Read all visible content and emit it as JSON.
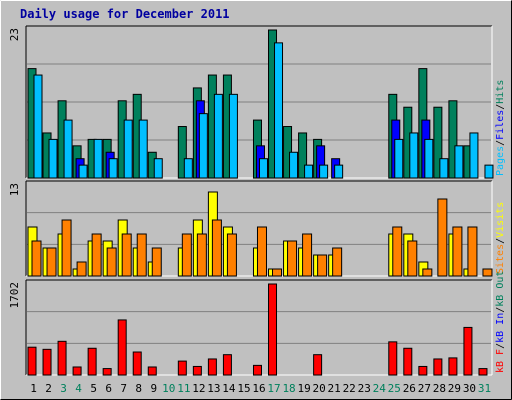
{
  "chart_data": [
    {
      "type": "bar",
      "title": "Daily usage for December 2011",
      "panel": "pages-files-hits",
      "scale_label": "23",
      "ylim": [
        0,
        23
      ],
      "categories": [
        "1",
        "2",
        "3",
        "4",
        "5",
        "6",
        "7",
        "8",
        "9",
        "10",
        "11",
        "12",
        "13",
        "14",
        "15",
        "16",
        "17",
        "18",
        "19",
        "20",
        "21",
        "22",
        "23",
        "24",
        "25",
        "26",
        "27",
        "28",
        "29",
        "30",
        "31"
      ],
      "weekend_days": [
        "3",
        "4",
        "10",
        "11",
        "17",
        "18",
        "24",
        "25",
        "31"
      ],
      "series": [
        {
          "name": "Hits",
          "color": "#00805c",
          "values": [
            17,
            7,
            12,
            5,
            6,
            6,
            12,
            13,
            4,
            0,
            8,
            14,
            16,
            16,
            0,
            9,
            23,
            8,
            7,
            6,
            0,
            0,
            0,
            0,
            13,
            11,
            17,
            11,
            12,
            5,
            0
          ]
        },
        {
          "name": "Files",
          "color": "#0000ff",
          "values": [
            0,
            0,
            0,
            3,
            0,
            4,
            0,
            0,
            0,
            0,
            0,
            12,
            0,
            0,
            0,
            5,
            0,
            0,
            0,
            5,
            3,
            0,
            0,
            0,
            9,
            0,
            9,
            0,
            0,
            0,
            0
          ]
        },
        {
          "name": "Pages",
          "color": "#00bfff",
          "values": [
            16,
            6,
            9,
            2,
            6,
            3,
            9,
            9,
            3,
            0,
            3,
            10,
            13,
            13,
            0,
            3,
            21,
            4,
            2,
            2,
            2,
            0,
            0,
            0,
            6,
            7,
            6,
            3,
            5,
            7,
            2
          ]
        }
      ],
      "axis_labels": [
        {
          "text": "Pages",
          "color": "#00bfff"
        },
        {
          "text": "/",
          "color": "#000000"
        },
        {
          "text": "Files",
          "color": "#0000ff"
        },
        {
          "text": "/",
          "color": "#000000"
        },
        {
          "text": "Hits",
          "color": "#00805c"
        }
      ]
    },
    {
      "type": "bar",
      "panel": "visits-sites",
      "scale_label": "13",
      "ylim": [
        0,
        13
      ],
      "series": [
        {
          "name": "Visits",
          "color": "#ffff00",
          "values": [
            7,
            4,
            6,
            1,
            5,
            5,
            8,
            4,
            2,
            0,
            4,
            8,
            12,
            7,
            0,
            4,
            1,
            5,
            4,
            3,
            3,
            0,
            0,
            0,
            6,
            6,
            2,
            0,
            6,
            1,
            0
          ]
        },
        {
          "name": "Sites",
          "color": "#ff8000",
          "values": [
            5,
            4,
            8,
            2,
            6,
            4,
            6,
            6,
            4,
            0,
            6,
            6,
            8,
            6,
            0,
            7,
            1,
            5,
            6,
            3,
            4,
            0,
            0,
            0,
            7,
            5,
            1,
            11,
            7,
            7,
            1
          ]
        }
      ],
      "axis_labels": [
        {
          "text": "Sites",
          "color": "#ff8000"
        },
        {
          "text": "/",
          "color": "#000000"
        },
        {
          "text": "Visits",
          "color": "#ffff00"
        }
      ]
    },
    {
      "type": "bar",
      "panel": "kbytes",
      "scale_label": "1702",
      "ylim": [
        0,
        1702
      ],
      "series": [
        {
          "name": "kB F",
          "color": "#ff0000",
          "values": [
            520,
            480,
            630,
            150,
            500,
            120,
            1030,
            430,
            150,
            0,
            260,
            160,
            300,
            380,
            0,
            180,
            1702,
            0,
            0,
            380,
            0,
            0,
            0,
            0,
            620,
            500,
            160,
            300,
            320,
            890,
            120
          ]
        }
      ],
      "axis_labels": [
        {
          "text": "kB F",
          "color": "#ff0000"
        },
        {
          "text": "/",
          "color": "#000000"
        },
        {
          "text": "kB In",
          "color": "#0000ff"
        },
        {
          "text": "/",
          "color": "#000000"
        },
        {
          "text": "kB Out",
          "color": "#00805c"
        }
      ]
    }
  ]
}
